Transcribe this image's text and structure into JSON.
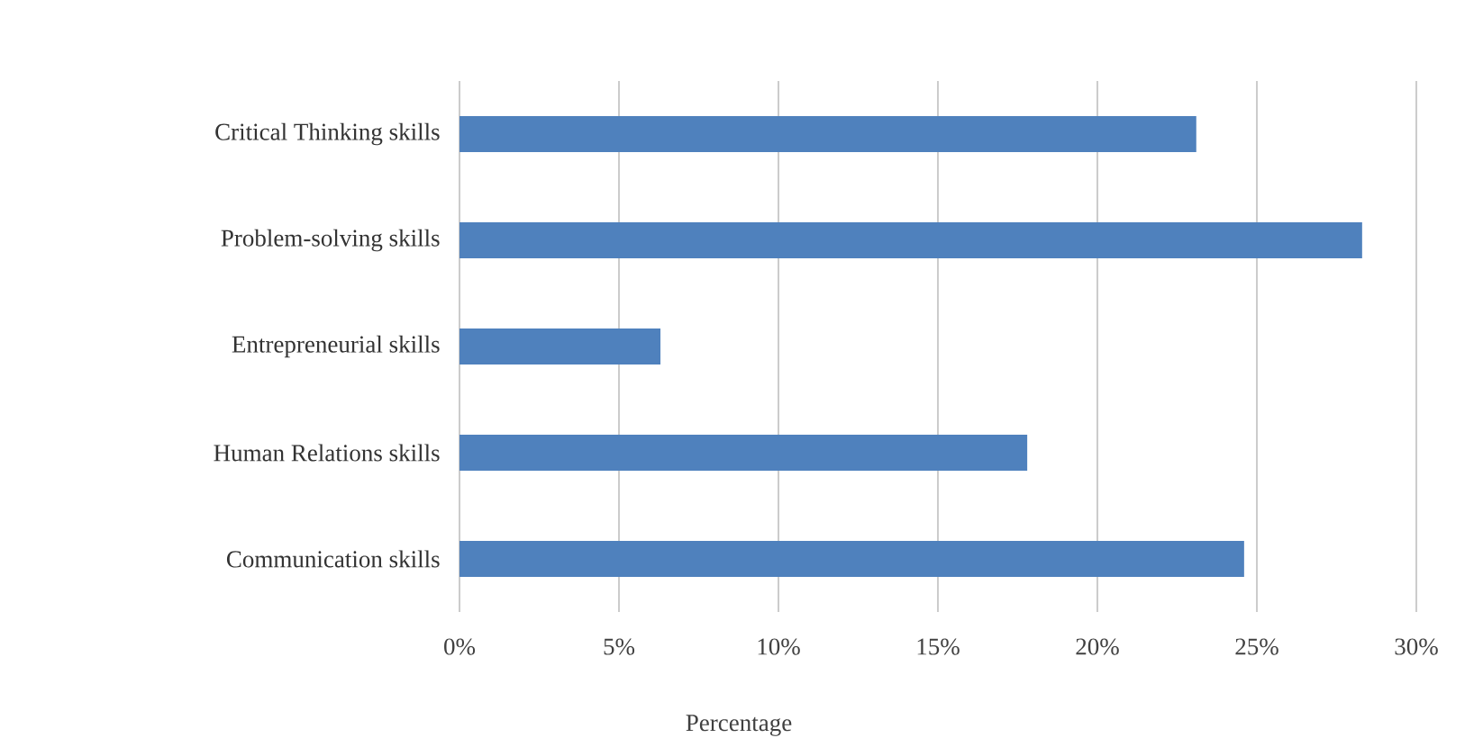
{
  "chart_data": {
    "type": "bar",
    "orientation": "horizontal",
    "xlabel": "Percentage",
    "categories": [
      "Critical Thinking skills",
      "Problem-solving skills",
      "Entrepreneurial skills",
      "Human Relations skills",
      "Communication skills"
    ],
    "values": [
      23.1,
      28.3,
      6.3,
      17.8,
      24.6
    ],
    "color": "#4f81bd",
    "xlim": [
      0,
      30
    ],
    "xticks": [
      {
        "value": 0,
        "label": "0%"
      },
      {
        "value": 5,
        "label": "5%"
      },
      {
        "value": 10,
        "label": "10%"
      },
      {
        "value": 15,
        "label": "15%"
      },
      {
        "value": 20,
        "label": "20%"
      },
      {
        "value": 25,
        "label": "25%"
      },
      {
        "value": 30,
        "label": "30%"
      }
    ],
    "grid": "x"
  }
}
